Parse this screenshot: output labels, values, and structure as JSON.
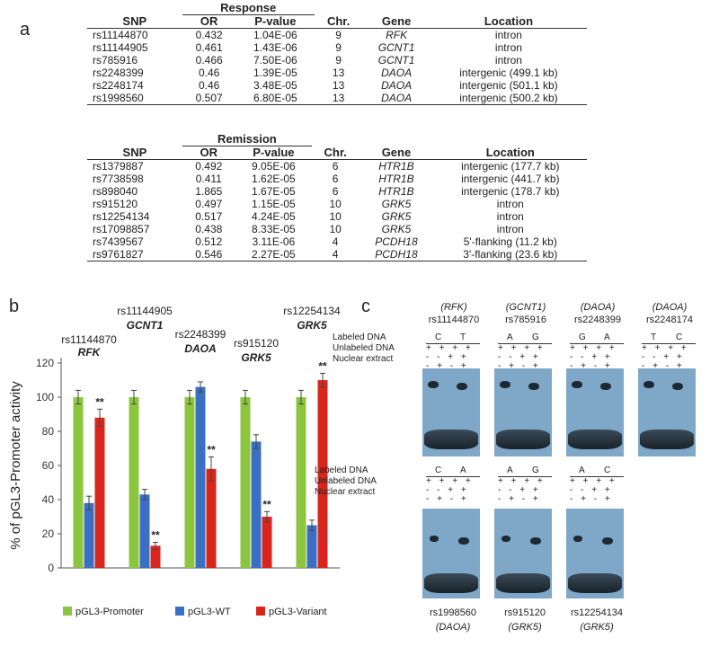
{
  "panels": {
    "a": "a",
    "b": "b",
    "c": "c"
  },
  "table_headers": {
    "snp": "SNP",
    "or": "OR",
    "pvalue": "P-value",
    "chr": "Chr.",
    "gene": "Gene",
    "location": "Location"
  },
  "response": {
    "title": "Response",
    "rows": [
      {
        "snp": "rs11144870",
        "or": "0.432",
        "p": "1.04E-06",
        "chr": "9",
        "gene": "RFK",
        "loc": "intron"
      },
      {
        "snp": "rs11144905",
        "or": "0.461",
        "p": "1.43E-06",
        "chr": "9",
        "gene": "GCNT1",
        "loc": "intron"
      },
      {
        "snp": "rs785916",
        "or": "0.466",
        "p": "7.50E-06",
        "chr": "9",
        "gene": "GCNT1",
        "loc": "intron"
      },
      {
        "snp": "rs2248399",
        "or": "0.46",
        "p": "1.39E-05",
        "chr": "13",
        "gene": "DAOA",
        "loc": "intergenic (499.1 kb)"
      },
      {
        "snp": "rs2248174",
        "or": "0.46",
        "p": "3.48E-05",
        "chr": "13",
        "gene": "DAOA",
        "loc": "intergenic (501.1 kb)"
      },
      {
        "snp": "rs1998560",
        "or": "0.507",
        "p": "6.80E-05",
        "chr": "13",
        "gene": "DAOA",
        "loc": "intergenic (500.2 kb)"
      }
    ]
  },
  "remission": {
    "title": "Remission",
    "rows": [
      {
        "snp": "rs1379887",
        "or": "0.492",
        "p": "9.05E-06",
        "chr": "6",
        "gene": "HTR1B",
        "loc": "intergenic (177.7 kb)"
      },
      {
        "snp": "rs7738598",
        "or": "0.411",
        "p": "1.62E-05",
        "chr": "6",
        "gene": "HTR1B",
        "loc": "intergenic (441.7 kb)"
      },
      {
        "snp": "rs898040",
        "or": "1.865",
        "p": "1.67E-05",
        "chr": "6",
        "gene": "HTR1B",
        "loc": "intergenic (178.7 kb)"
      },
      {
        "snp": "rs915120",
        "or": "0.497",
        "p": "1.15E-05",
        "chr": "10",
        "gene": "GRK5",
        "loc": "intron"
      },
      {
        "snp": "rs12254134",
        "or": "0.517",
        "p": "4.24E-05",
        "chr": "10",
        "gene": "GRK5",
        "loc": "intron"
      },
      {
        "snp": "rs17098857",
        "or": "0.438",
        "p": "8.33E-05",
        "chr": "10",
        "gene": "GRK5",
        "loc": "intron"
      },
      {
        "snp": "rs7439567",
        "or": "0.512",
        "p": "3.11E-06",
        "chr": "4",
        "gene": "PCDH18",
        "loc": "5'-flanking (11.2 kb)"
      },
      {
        "snp": "rs9761827",
        "or": "0.546",
        "p": "2.27E-05",
        "chr": "4",
        "gene": "PCDH18",
        "loc": "3'-flanking (23.6 kb)"
      }
    ]
  },
  "chart_data": {
    "type": "bar",
    "ylabel": "% of pGL3-Promoter activity",
    "ylim": [
      0,
      120
    ],
    "yticks": [
      "0",
      "20",
      "40",
      "60",
      "80",
      "100",
      "120"
    ],
    "groups": [
      {
        "snp": "rs11144870",
        "gene": "RFK"
      },
      {
        "snp": "rs11144905",
        "gene": "GCNT1"
      },
      {
        "snp": "rs2248399",
        "gene": "DAOA"
      },
      {
        "snp": "rs915120",
        "gene": "GRK5"
      },
      {
        "snp": "rs12254134",
        "gene": "GRK5"
      }
    ],
    "series": [
      {
        "name": "pGL3-Promoter",
        "color": "#8cc63f",
        "values": [
          100,
          100,
          100,
          100,
          100
        ],
        "errors": [
          4,
          4,
          4,
          4,
          4
        ]
      },
      {
        "name": "pGL3-WT",
        "color": "#3a6fc4",
        "values": [
          38,
          43,
          106,
          74,
          25
        ],
        "errors": [
          4,
          3,
          3,
          4,
          3
        ]
      },
      {
        "name": "pGL3-Variant",
        "color": "#d9261c",
        "values": [
          88,
          13,
          58,
          30,
          110
        ],
        "errors": [
          5,
          2,
          7,
          3,
          4
        ]
      }
    ],
    "significance": "**",
    "legend": "bottom"
  },
  "gel": {
    "labels": {
      "labeled": "Labeled DNA",
      "unlabeled": "Unlabeled DNA",
      "nuclear": "Nuclear extract"
    },
    "pm_rows": [
      "+ + + +",
      "- - + +",
      "- + - +"
    ],
    "top": [
      {
        "gene": "(RFK)",
        "snp": "rs11144870",
        "alleles": [
          "C",
          "T"
        ]
      },
      {
        "gene": "(GCNT1)",
        "snp": "rs785916",
        "alleles": [
          "A",
          "G"
        ]
      },
      {
        "gene": "(DAOA)",
        "snp": "rs2248399",
        "alleles": [
          "G",
          "A"
        ]
      },
      {
        "gene": "(DAOA)",
        "snp": "rs2248174",
        "alleles": [
          "T",
          "C"
        ]
      }
    ],
    "bottom": [
      {
        "gene": "(DAOA)",
        "snp": "rs1998560",
        "alleles": [
          "C",
          "A"
        ]
      },
      {
        "gene": "(GRK5)",
        "snp": "rs915120",
        "alleles": [
          "A",
          "G"
        ]
      },
      {
        "gene": "(GRK5)",
        "snp": "rs12254134",
        "alleles": [
          "A",
          "C"
        ]
      }
    ]
  }
}
